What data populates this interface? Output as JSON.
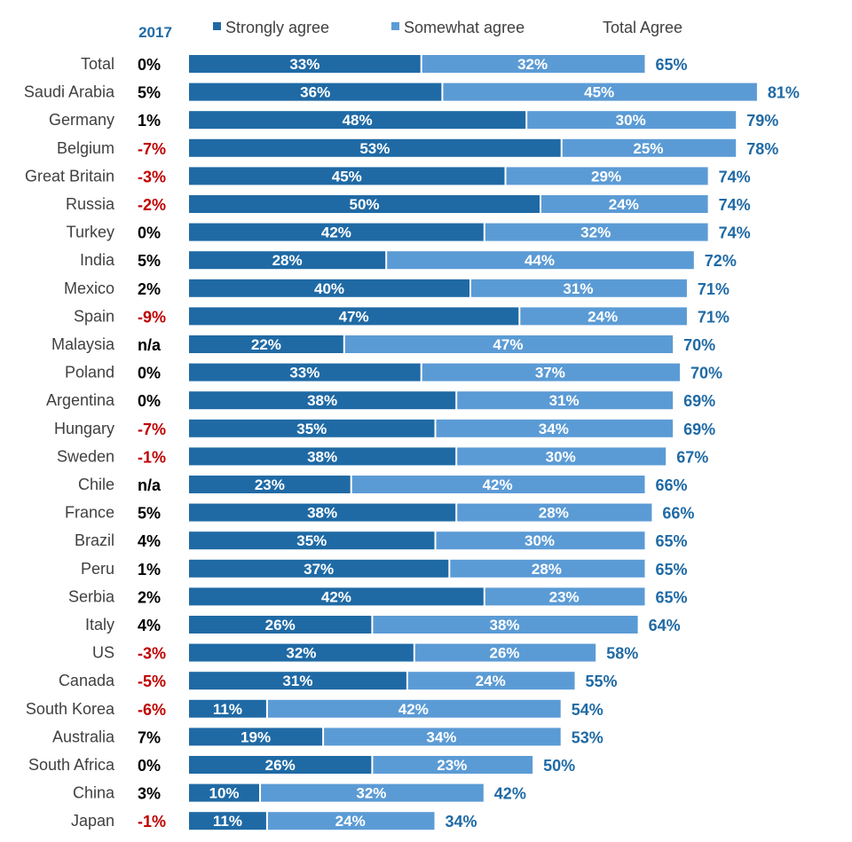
{
  "chart_data": {
    "type": "bar",
    "orientation": "horizontal",
    "stacked": true,
    "change_header": "2017",
    "legend": {
      "strong": "Strongly agree",
      "somewhat": "Somewhat agree",
      "total": "Total Agree"
    },
    "colors": {
      "strong": "#1f6aa5",
      "somewhat": "#5b9bd5",
      "total_text": "#1f6aa5",
      "header_text": "#1f6aa5",
      "change_positive": "#000000",
      "change_negative": "#c00000"
    },
    "xlim": [
      0,
      100
    ],
    "categories": [
      "Total",
      "Saudi Arabia",
      "Germany",
      "Belgium",
      "Great Britain",
      "Russia",
      "Turkey",
      "India",
      "Mexico",
      "Spain",
      "Malaysia",
      "Poland",
      "Argentina",
      "Hungary",
      "Sweden",
      "Chile",
      "France",
      "Brazil",
      "Peru",
      "Serbia",
      "Italy",
      "US",
      "Canada",
      "South Korea",
      "Australia",
      "South Africa",
      "China",
      "Japan"
    ],
    "change_2017": [
      "0%",
      "5%",
      "1%",
      "-7%",
      "-3%",
      "-2%",
      "0%",
      "5%",
      "2%",
      "-9%",
      "n/a",
      "0%",
      "0%",
      "-7%",
      "-1%",
      "n/a",
      "5%",
      "4%",
      "1%",
      "2%",
      "4%",
      "-3%",
      "-5%",
      "-6%",
      "7%",
      "0%",
      "3%",
      "-1%"
    ],
    "series": [
      {
        "name": "Strongly agree",
        "values": [
          33,
          36,
          48,
          53,
          45,
          50,
          42,
          28,
          40,
          47,
          22,
          33,
          38,
          35,
          38,
          23,
          38,
          35,
          37,
          42,
          26,
          32,
          31,
          11,
          19,
          26,
          10,
          11
        ]
      },
      {
        "name": "Somewhat agree",
        "values": [
          32,
          45,
          30,
          25,
          29,
          24,
          32,
          44,
          31,
          24,
          47,
          37,
          31,
          34,
          30,
          42,
          28,
          30,
          28,
          23,
          38,
          26,
          24,
          42,
          34,
          23,
          32,
          24
        ]
      }
    ],
    "totals": [
      65,
      81,
      79,
      78,
      74,
      74,
      74,
      72,
      71,
      71,
      70,
      70,
      69,
      69,
      67,
      66,
      66,
      65,
      65,
      65,
      64,
      58,
      55,
      54,
      53,
      50,
      42,
      34
    ]
  }
}
